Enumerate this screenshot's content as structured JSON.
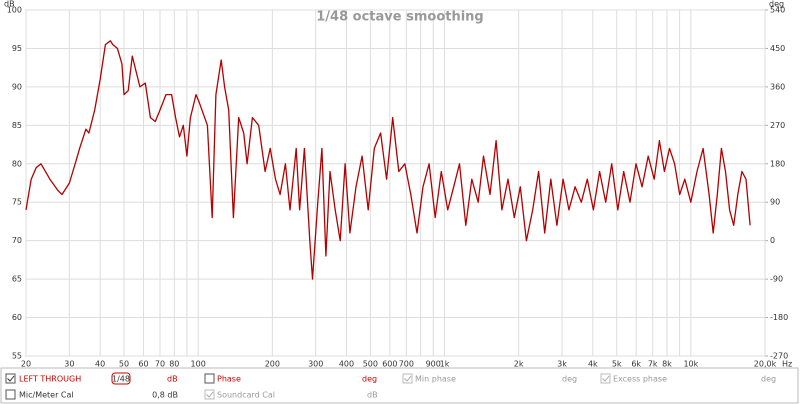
{
  "chart_data": {
    "type": "line",
    "title": "1/48 octave smoothing",
    "y_unit": "dB",
    "y2_unit": "deg",
    "x_unit": "Hz",
    "xscale": "log",
    "grid": true,
    "xlim": [
      20,
      20000
    ],
    "ylim": [
      55,
      100
    ],
    "y2lim": [
      -270,
      540
    ],
    "yticks": [
      55,
      60,
      65,
      70,
      75,
      80,
      85,
      90,
      95,
      100
    ],
    "y2ticks": [
      -270,
      -180,
      -90,
      0,
      90,
      180,
      270,
      360,
      450,
      540
    ],
    "xticks": [
      20,
      30,
      40,
      50,
      60,
      70,
      80,
      100,
      200,
      300,
      400,
      500,
      600,
      700,
      900,
      {
        "value": 1000,
        "label": "1k"
      },
      {
        "value": 2000,
        "label": "2k"
      },
      {
        "value": 3000,
        "label": "3k"
      },
      {
        "value": 4000,
        "label": "4k"
      },
      {
        "value": 5000,
        "label": "5k"
      },
      {
        "value": 6000,
        "label": "6k"
      },
      {
        "value": 7000,
        "label": "7k"
      },
      {
        "value": 8000,
        "label": "8k"
      },
      {
        "value": 10000,
        "label": "10k"
      },
      {
        "value": 20000,
        "label": "20,0k"
      }
    ],
    "xminor": [
      90,
      800,
      9000
    ],
    "series": [
      {
        "name": "LEFT THROUGH",
        "color": "#b40000",
        "x": [
          20,
          21,
          22,
          23,
          25,
          27,
          28,
          30,
          32,
          33,
          35,
          36,
          38,
          40,
          42,
          44,
          45,
          47,
          49,
          50,
          52,
          54,
          56,
          58,
          61,
          64,
          67,
          70,
          74,
          78,
          81,
          84,
          87,
          90,
          93,
          98,
          101,
          109,
          114,
          118,
          124,
          128,
          133,
          139,
          146,
          153,
          158,
          166,
          176,
          187,
          196,
          206,
          215,
          226,
          236,
          250,
          258,
          270,
          284,
          291,
          306,
          318,
          330,
          343,
          360,
          377,
          395,
          413,
          437,
          463,
          490,
          519,
          550,
          582,
          616,
          652,
          690,
          730,
          773,
          818,
          866,
          917,
          970,
          1030,
          1090,
          1150,
          1220,
          1290,
          1370,
          1440,
          1530,
          1620,
          1710,
          1810,
          1920,
          2030,
          2150,
          2280,
          2410,
          2550,
          2700,
          2860,
          3030,
          3200,
          3390,
          3590,
          3800,
          4020,
          4260,
          4510,
          4770,
          5050,
          5340,
          5660,
          5990,
          6340,
          6710,
          7100,
          7450,
          7810,
          8190,
          8590,
          9010,
          9450,
          10000,
          10590,
          11210,
          11860,
          12320,
          12800,
          13310,
          13830,
          14370,
          14930,
          15510,
          16120,
          16750,
          17400
        ],
        "values": [
          74,
          78,
          79.5,
          80,
          78,
          76.5,
          76,
          77.5,
          80.5,
          82,
          84.5,
          84,
          87,
          91,
          95.5,
          96,
          95.5,
          95,
          93,
          89,
          89.5,
          94,
          92,
          90,
          90.5,
          86,
          85.5,
          87,
          89,
          89,
          86,
          83.5,
          85,
          81,
          86,
          89,
          88,
          85,
          73,
          89,
          93.5,
          90,
          87,
          73,
          86,
          84,
          80,
          86,
          85,
          79,
          82,
          78,
          76,
          80,
          74,
          82,
          74,
          82,
          70,
          65,
          75,
          82,
          68,
          79,
          74,
          70,
          80,
          71,
          77,
          81,
          74,
          82,
          84,
          78,
          86,
          79,
          80,
          76,
          71,
          77,
          80,
          73,
          79,
          74,
          77,
          80,
          72,
          78,
          75,
          81,
          76,
          83,
          74,
          78,
          73,
          77,
          70,
          74,
          79,
          71,
          78,
          72,
          78,
          74,
          77,
          75,
          78,
          74,
          79,
          75,
          80,
          74,
          79,
          75,
          80,
          77,
          81,
          78,
          83,
          79,
          82,
          80,
          76,
          78,
          75,
          79,
          82,
          76,
          71,
          76,
          82,
          79,
          74,
          72,
          76,
          79,
          78,
          72
        ]
      }
    ]
  },
  "panel": {
    "smoothing": "1/48",
    "series_unit": "dB",
    "phase": "Phase",
    "phase_unit": "deg",
    "min_phase": "Min phase",
    "min_phase_unit": "deg",
    "excess_phase": "Excess phase",
    "excess_phase_unit": "deg",
    "mic_cal": "Mic/Meter Cal",
    "mic_cal_value": "0,8 dB",
    "soundcard_cal": "Soundcard Cal",
    "soundcard_unit": "dB"
  }
}
